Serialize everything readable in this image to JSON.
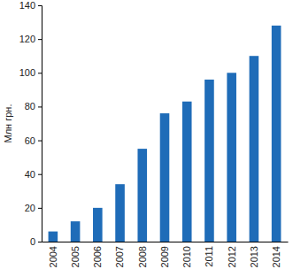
{
  "chart_data": {
    "type": "bar",
    "y_label": "Млн грн.",
    "categories": [
      "2004",
      "2005",
      "2006",
      "2007",
      "2008",
      "2009",
      "2010",
      "2011",
      "2012",
      "2013",
      "2014"
    ],
    "values": [
      6,
      12,
      20,
      34,
      55,
      76,
      83,
      96,
      100,
      110,
      128
    ],
    "color": "#1f6cb8",
    "ylim": [
      0,
      140
    ],
    "yticks": [
      0,
      20,
      40,
      60,
      80,
      100,
      120,
      140
    ],
    "grid": false
  }
}
